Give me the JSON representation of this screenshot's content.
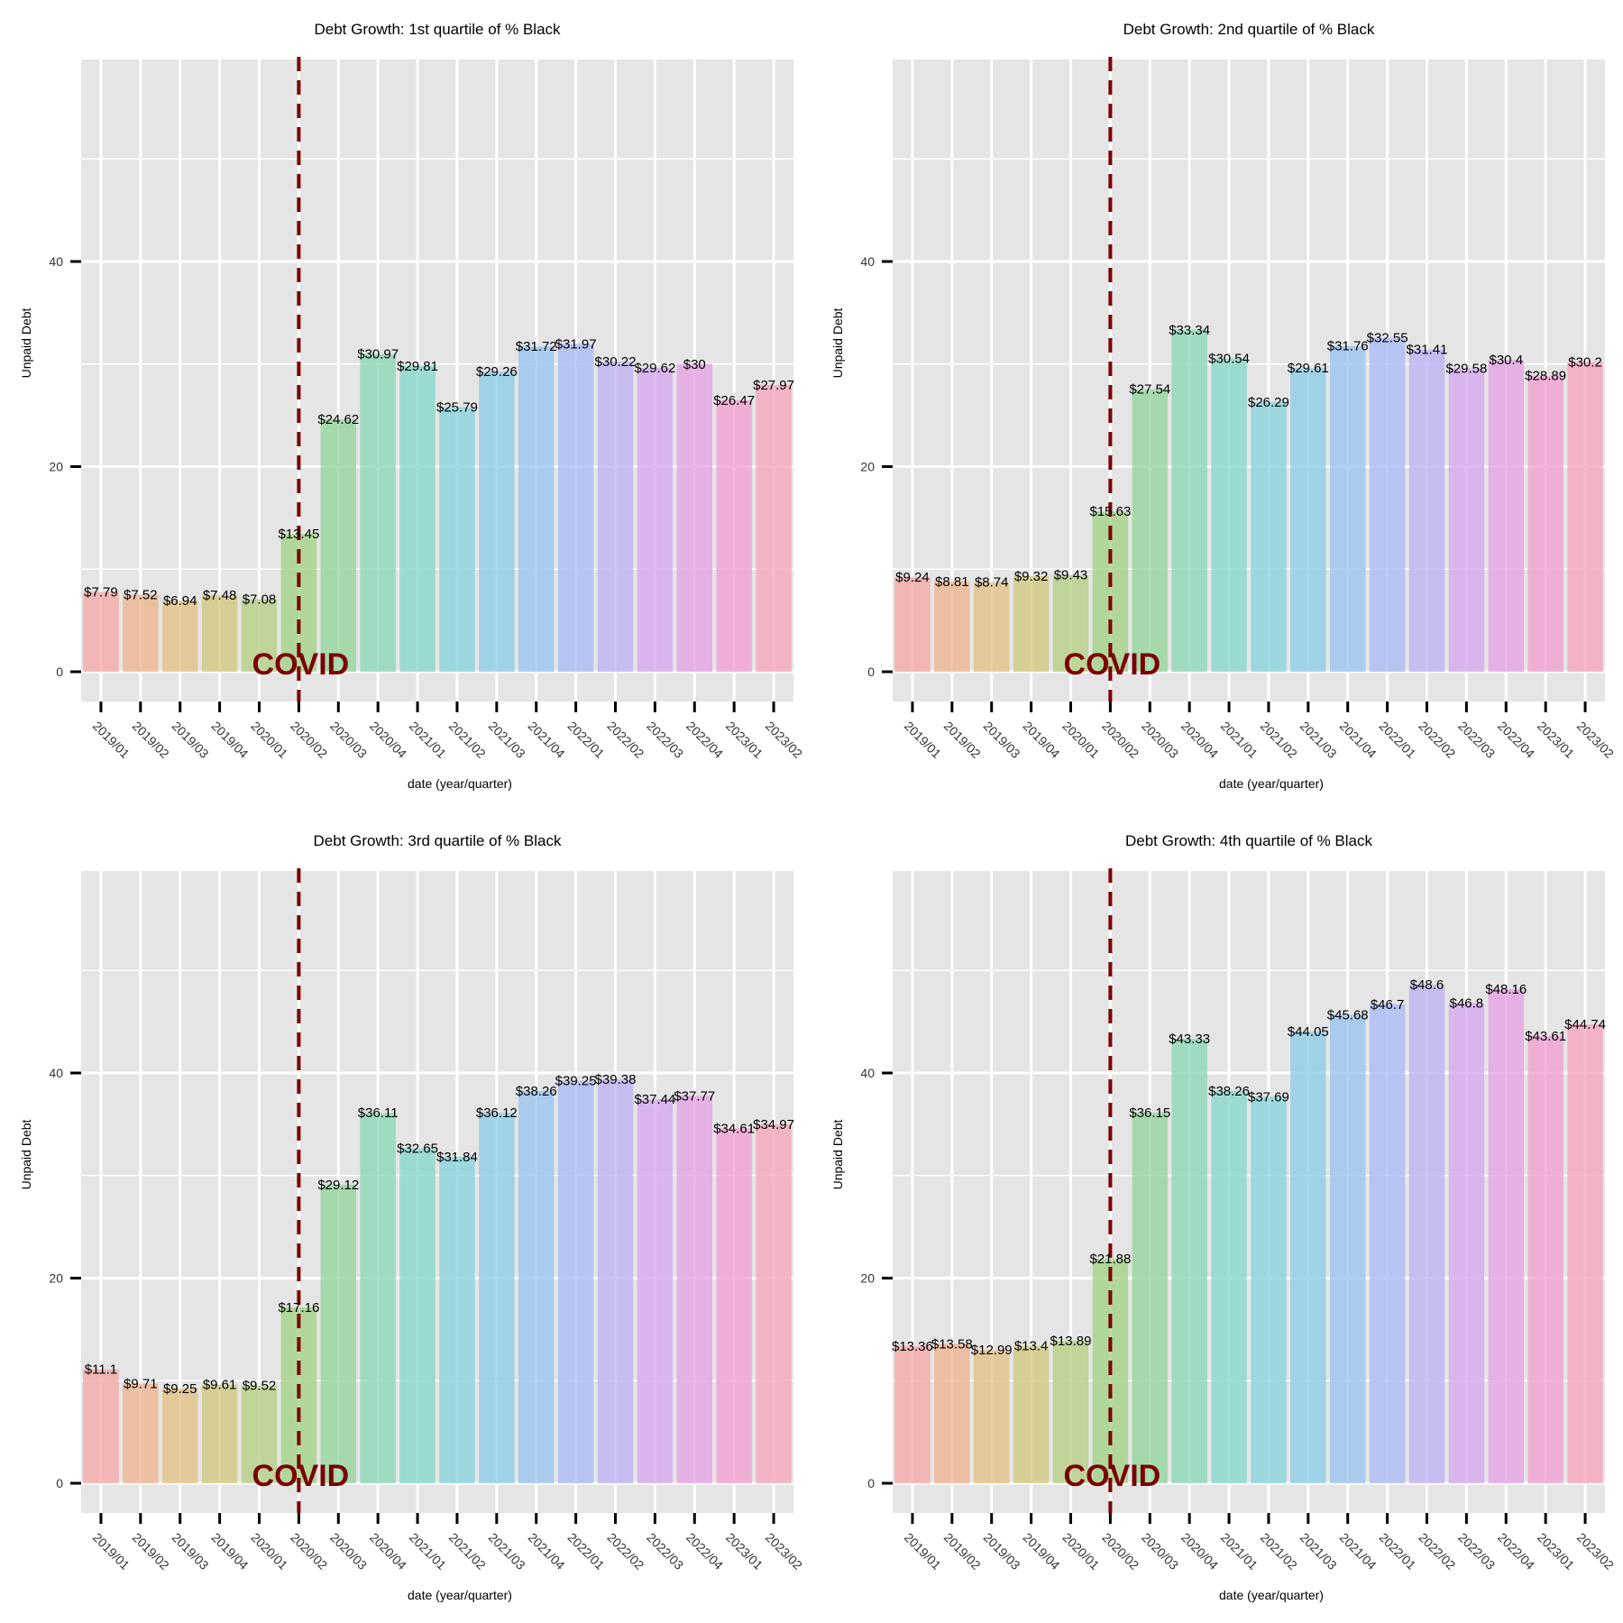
{
  "chart_data": [
    {
      "type": "bar",
      "title": "Debt Growth: 1st quartile of % Black",
      "xlabel": "date (year/quarter)",
      "ylabel": "Unpaid Debt",
      "categories": [
        "2019/01",
        "2019/02",
        "2019/03",
        "2019/04",
        "2020/01",
        "2020/02",
        "2020/03",
        "2020/04",
        "2021/01",
        "2021/02",
        "2021/03",
        "2021/04",
        "2022/01",
        "2022/02",
        "2022/03",
        "2022/04",
        "2023/01",
        "2023/02"
      ],
      "values": [
        7.79,
        7.52,
        6.94,
        7.48,
        7.08,
        13.45,
        24.62,
        30.97,
        29.81,
        25.79,
        29.26,
        31.72,
        31.97,
        30.22,
        29.62,
        30,
        26.47,
        27.97
      ],
      "labels": [
        "$7.79",
        "$7.52",
        "$6.94",
        "$7.48",
        "$7.08",
        "$13.45",
        "$24.62",
        "$30.97",
        "$29.81",
        "$25.79",
        "$29.26",
        "$31.72",
        "$31.97",
        "$30.22",
        "$29.62",
        "$30",
        "$26.47",
        "$27.97"
      ],
      "ylim": [
        -3,
        60
      ],
      "yticks": [
        0,
        20,
        40
      ],
      "grid": true,
      "annotation": {
        "text": "COVID",
        "x": "2020/02",
        "color": "#7a0000"
      }
    },
    {
      "type": "bar",
      "title": "Debt Growth: 2nd quartile of % Black",
      "xlabel": "date (year/quarter)",
      "ylabel": "Unpaid Debt",
      "categories": [
        "2019/01",
        "2019/02",
        "2019/03",
        "2019/04",
        "2020/01",
        "2020/02",
        "2020/03",
        "2020/04",
        "2021/01",
        "2021/02",
        "2021/03",
        "2021/04",
        "2022/01",
        "2022/02",
        "2022/03",
        "2022/04",
        "2023/01",
        "2023/02"
      ],
      "values": [
        9.24,
        8.81,
        8.74,
        9.32,
        9.43,
        15.63,
        27.54,
        33.34,
        30.54,
        26.29,
        29.61,
        31.76,
        32.55,
        31.41,
        29.58,
        30.4,
        28.89,
        30.2
      ],
      "labels": [
        "$9.24",
        "$8.81",
        "$8.74",
        "$9.32",
        "$9.43",
        "$15.63",
        "$27.54",
        "$33.34",
        "$30.54",
        "$26.29",
        "$29.61",
        "$31.76",
        "$32.55",
        "$31.41",
        "$29.58",
        "$30.4",
        "$28.89",
        "$30.2"
      ],
      "ylim": [
        -3,
        60
      ],
      "yticks": [
        0,
        20,
        40
      ],
      "grid": true,
      "annotation": {
        "text": "COVID",
        "x": "2020/02",
        "color": "#7a0000"
      }
    },
    {
      "type": "bar",
      "title": "Debt Growth: 3rd quartile of % Black",
      "xlabel": "date (year/quarter)",
      "ylabel": "Unpaid Debt",
      "categories": [
        "2019/01",
        "2019/02",
        "2019/03",
        "2019/04",
        "2020/01",
        "2020/02",
        "2020/03",
        "2020/04",
        "2021/01",
        "2021/02",
        "2021/03",
        "2021/04",
        "2022/01",
        "2022/02",
        "2022/03",
        "2022/04",
        "2023/01",
        "2023/02"
      ],
      "values": [
        11.1,
        9.71,
        9.25,
        9.61,
        9.52,
        17.16,
        29.12,
        36.11,
        32.65,
        31.84,
        36.12,
        38.26,
        39.25,
        39.38,
        37.44,
        37.77,
        34.61,
        34.97
      ],
      "labels": [
        "$11.1",
        "$9.71",
        "$9.25",
        "$9.61",
        "$9.52",
        "$17.16",
        "$29.12",
        "$36.11",
        "$32.65",
        "$31.84",
        "$36.12",
        "$38.26",
        "$39.25",
        "$39.38",
        "$37.44",
        "$37.77",
        "$34.61",
        "$34.97"
      ],
      "ylim": [
        -3,
        60
      ],
      "yticks": [
        0,
        20,
        40
      ],
      "grid": true,
      "annotation": {
        "text": "COVID",
        "x": "2020/02",
        "color": "#7a0000"
      }
    },
    {
      "type": "bar",
      "title": "Debt Growth: 4th quartile of % Black",
      "xlabel": "date (year/quarter)",
      "ylabel": "Unpaid Debt",
      "categories": [
        "2019/01",
        "2019/02",
        "2019/03",
        "2019/04",
        "2020/01",
        "2020/02",
        "2020/03",
        "2020/04",
        "2021/01",
        "2021/02",
        "2021/03",
        "2021/04",
        "2022/01",
        "2022/02",
        "2022/03",
        "2022/04",
        "2023/01",
        "2023/02"
      ],
      "values": [
        13.36,
        13.58,
        12.99,
        13.4,
        13.89,
        21.88,
        36.15,
        43.33,
        38.26,
        37.69,
        44.05,
        45.68,
        46.7,
        48.6,
        46.8,
        48.16,
        43.61,
        44.74
      ],
      "labels": [
        "$13.36",
        "$13.58",
        "$12.99",
        "$13.4",
        "$13.89",
        "$21.88",
        "$36.15",
        "$43.33",
        "$38.26",
        "$37.69",
        "$44.05",
        "$45.68",
        "$46.7",
        "$48.6",
        "$46.8",
        "$48.16",
        "$43.61",
        "$44.74"
      ],
      "ylim": [
        -3,
        60
      ],
      "yticks": [
        0,
        20,
        40
      ],
      "grid": true,
      "annotation": {
        "text": "COVID",
        "x": "2020/02",
        "color": "#7a0000"
      }
    }
  ],
  "colors": {
    "panel_bg": "#e5e5e5",
    "grid": "#ffffff",
    "text": "#333333",
    "covid_line": "#7a0000",
    "bars": [
      "#f4a6a2",
      "#eeb18c",
      "#e2bf7f",
      "#cfc77a",
      "#b3cc7e",
      "#9fd080",
      "#8fd498",
      "#85d6b3",
      "#82d6c8",
      "#83d2db",
      "#88cbe7",
      "#94c1f0",
      "#a7b7f4",
      "#bcadf3",
      "#d3a5ef",
      "#e49ee2",
      "#f19ccf",
      "#f5a3ba"
    ]
  }
}
